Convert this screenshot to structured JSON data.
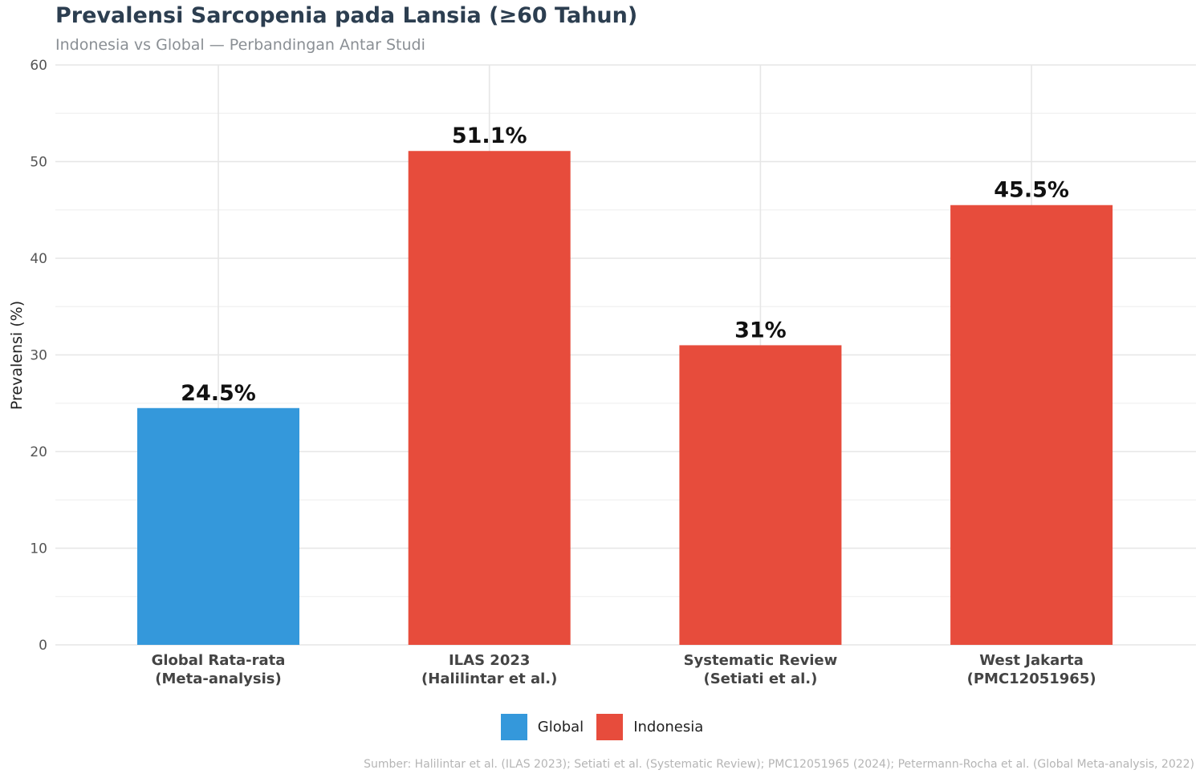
{
  "title": "Prevalensi Sarcopenia pada Lansia (≥60 Tahun)",
  "subtitle": "Indonesia vs Global — Perbandingan Antar Studi",
  "caption": "Sumber: Halilintar et al. (ILAS 2023); Setiati et al. (Systematic Review); PMC12051965 (2024); Petermann-Rocha et al. (Global Meta-analysis, 2022)",
  "legend": [
    {
      "label": "Global",
      "color": "#3498db"
    },
    {
      "label": "Indonesia",
      "color": "#e74c3c"
    }
  ],
  "chart_data": {
    "type": "bar",
    "categories": [
      [
        "Global Rata-rata",
        "(Meta-analysis)"
      ],
      [
        "ILAS 2023",
        "(Halilintar et al.)"
      ],
      [
        "Systematic Review",
        "(Setiati et al.)"
      ],
      [
        "West Jakarta",
        "(PMC12051965)"
      ]
    ],
    "values": [
      24.5,
      51.1,
      31,
      45.5
    ],
    "value_labels": [
      "24.5%",
      "51.1%",
      "31%",
      "45.5%"
    ],
    "groups": [
      "Global",
      "Indonesia",
      "Indonesia",
      "Indonesia"
    ],
    "xlabel": "",
    "ylabel": "Prevalensi (%)",
    "ylim": [
      0,
      60
    ],
    "yticks": [
      0,
      10,
      20,
      30,
      40,
      50,
      60
    ],
    "grid": true,
    "legend_position": "bottom"
  }
}
